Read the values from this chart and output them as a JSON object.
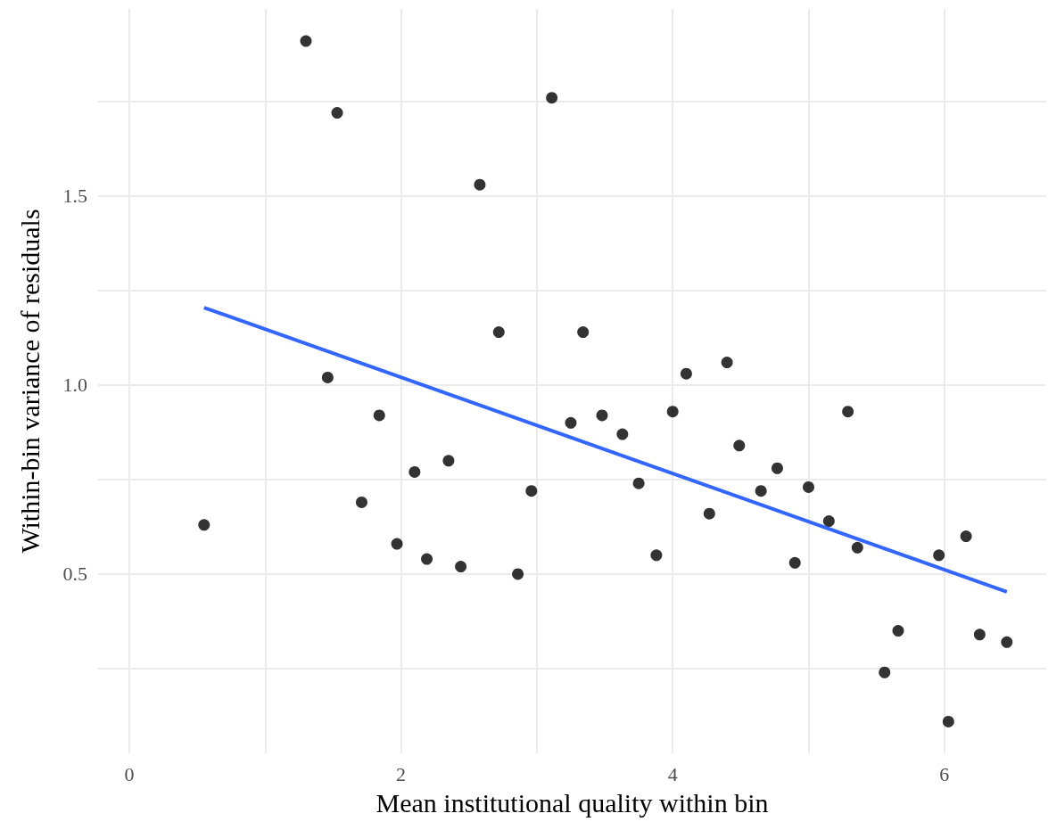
{
  "chart_data": {
    "type": "scatter",
    "xlabel": "Mean institutional quality within bin",
    "ylabel": "Within-bin variance of residuals",
    "xlim": [
      -0.23,
      6.75
    ],
    "ylim": [
      0.026,
      1.995
    ],
    "xticks": [
      0,
      {
        "value": 1,
        "label": null
      },
      2,
      {
        "value": 3,
        "label": null
      },
      4,
      {
        "value": 5,
        "label": null
      },
      6
    ],
    "yticks": [
      {
        "value": 0.25,
        "label": null
      },
      0.5,
      {
        "value": 0.75,
        "label": null
      },
      {
        "value": 1,
        "label": "1.0"
      },
      {
        "value": 1.25,
        "label": null
      },
      1.5,
      {
        "value": 1.75,
        "label": null
      }
    ],
    "grid": true,
    "marker": "circle",
    "series": [
      {
        "color": "#000000",
        "x": [
          0.55,
          1.3,
          1.53,
          1.46,
          1.71,
          1.84,
          1.97,
          2.1,
          2.19,
          2.35,
          2.44,
          2.58,
          2.72,
          2.86,
          2.96,
          3.11,
          3.25,
          3.34,
          3.48,
          3.63,
          3.75,
          3.88,
          4.0,
          4.1,
          4.27,
          4.4,
          4.49,
          4.65,
          4.77,
          4.9,
          5.0,
          5.15,
          5.29,
          5.36,
          5.56,
          5.66,
          5.96,
          6.03,
          6.16,
          6.26,
          6.46
        ],
        "values": [
          0.63,
          1.91,
          1.72,
          1.02,
          0.69,
          0.92,
          0.58,
          0.77,
          0.54,
          0.8,
          0.52,
          1.53,
          1.14,
          0.5,
          0.72,
          1.76,
          0.9,
          1.14,
          0.92,
          0.87,
          0.74,
          0.55,
          0.93,
          1.03,
          0.66,
          1.06,
          0.84,
          0.72,
          0.78,
          0.53,
          0.73,
          0.64,
          0.93,
          0.57,
          0.24,
          0.35,
          0.55,
          0.11,
          0.6,
          0.34,
          0.32
        ]
      },
      {
        "type": "line",
        "color": "#3366ff",
        "marker": "none",
        "x": [
          0.55,
          6.46
        ],
        "values": [
          1.205,
          0.453
        ]
      }
    ]
  }
}
